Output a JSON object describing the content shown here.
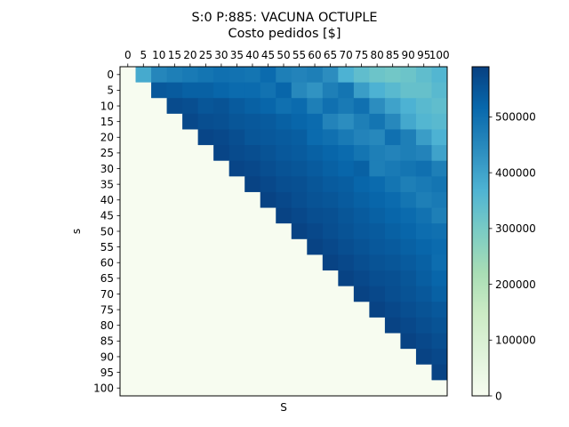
{
  "chart_data": {
    "type": "heatmap",
    "title": "S:0 P:885: VACUNA OCTUPLE",
    "subtitle": "Costo pedidos [$]",
    "xlabel": "S",
    "ylabel": "s",
    "x_ticks": [
      "0",
      "5",
      "10",
      "15",
      "20",
      "25",
      "30",
      "35",
      "40",
      "45",
      "50",
      "55",
      "60",
      "65",
      "70",
      "75",
      "80",
      "85",
      "90",
      "95",
      "100"
    ],
    "y_ticks": [
      "0",
      "5",
      "10",
      "15",
      "20",
      "25",
      "30",
      "35",
      "40",
      "45",
      "50",
      "55",
      "60",
      "65",
      "70",
      "75",
      "80",
      "85",
      "90",
      "95",
      "100"
    ],
    "colormap": "GnBu",
    "vmin": 0,
    "vmax": 590000,
    "colorbar_ticks": [
      "0",
      "100000",
      "200000",
      "300000",
      "400000",
      "500000"
    ],
    "colorbar_tick_values": [
      0,
      100000,
      200000,
      300000,
      400000,
      500000
    ],
    "values": [
      [
        0,
        385000,
        455000,
        470000,
        480000,
        490000,
        500000,
        495000,
        490000,
        510000,
        470000,
        460000,
        470000,
        440000,
        370000,
        340000,
        320000,
        310000,
        320000,
        340000,
        360000
      ],
      [
        0,
        0,
        545000,
        540000,
        530000,
        530000,
        520000,
        510000,
        510000,
        495000,
        520000,
        450000,
        430000,
        470000,
        490000,
        410000,
        370000,
        350000,
        330000,
        330000,
        350000
      ],
      [
        0,
        0,
        0,
        570000,
        565000,
        550000,
        555000,
        540000,
        530000,
        520000,
        500000,
        510000,
        470000,
        500000,
        480000,
        500000,
        440000,
        400000,
        370000,
        350000,
        340000
      ],
      [
        0,
        0,
        0,
        0,
        575000,
        565000,
        560000,
        550000,
        545000,
        540000,
        530000,
        520000,
        510000,
        460000,
        440000,
        470000,
        490000,
        450000,
        390000,
        360000,
        350000
      ],
      [
        0,
        0,
        0,
        0,
        0,
        580000,
        575000,
        565000,
        550000,
        545000,
        540000,
        535000,
        510000,
        500000,
        480000,
        460000,
        450000,
        500000,
        470000,
        410000,
        370000
      ],
      [
        0,
        0,
        0,
        0,
        0,
        0,
        580000,
        570000,
        565000,
        555000,
        545000,
        540000,
        530000,
        520000,
        510000,
        490000,
        470000,
        460000,
        470000,
        460000,
        400000
      ],
      [
        0,
        0,
        0,
        0,
        0,
        0,
        0,
        580000,
        575000,
        565000,
        555000,
        550000,
        540000,
        530000,
        520000,
        530000,
        470000,
        480000,
        490000,
        500000,
        470000
      ],
      [
        0,
        0,
        0,
        0,
        0,
        0,
        0,
        0,
        585000,
        575000,
        565000,
        560000,
        550000,
        540000,
        535000,
        520000,
        510000,
        490000,
        470000,
        480000,
        490000
      ],
      [
        0,
        0,
        0,
        0,
        0,
        0,
        0,
        0,
        0,
        585000,
        575000,
        565000,
        555000,
        550000,
        540000,
        530000,
        520000,
        510000,
        490000,
        470000,
        480000
      ],
      [
        0,
        0,
        0,
        0,
        0,
        0,
        0,
        0,
        0,
        0,
        585000,
        575000,
        565000,
        560000,
        550000,
        540000,
        530000,
        520000,
        510000,
        495000,
        470000
      ],
      [
        0,
        0,
        0,
        0,
        0,
        0,
        0,
        0,
        0,
        0,
        0,
        585000,
        575000,
        565000,
        555000,
        545000,
        540000,
        530000,
        520000,
        505000,
        500000
      ],
      [
        0,
        0,
        0,
        0,
        0,
        0,
        0,
        0,
        0,
        0,
        0,
        0,
        585000,
        575000,
        565000,
        555000,
        545000,
        540000,
        530000,
        520000,
        510000
      ],
      [
        0,
        0,
        0,
        0,
        0,
        0,
        0,
        0,
        0,
        0,
        0,
        0,
        0,
        585000,
        575000,
        565000,
        555000,
        550000,
        540000,
        530000,
        505000
      ],
      [
        0,
        0,
        0,
        0,
        0,
        0,
        0,
        0,
        0,
        0,
        0,
        0,
        0,
        0,
        585000,
        575000,
        565000,
        560000,
        550000,
        535000,
        520000
      ],
      [
        0,
        0,
        0,
        0,
        0,
        0,
        0,
        0,
        0,
        0,
        0,
        0,
        0,
        0,
        0,
        585000,
        575000,
        565000,
        555000,
        545000,
        530000
      ],
      [
        0,
        0,
        0,
        0,
        0,
        0,
        0,
        0,
        0,
        0,
        0,
        0,
        0,
        0,
        0,
        0,
        585000,
        575000,
        565000,
        555000,
        545000
      ],
      [
        0,
        0,
        0,
        0,
        0,
        0,
        0,
        0,
        0,
        0,
        0,
        0,
        0,
        0,
        0,
        0,
        0,
        585000,
        575000,
        565000,
        555000
      ],
      [
        0,
        0,
        0,
        0,
        0,
        0,
        0,
        0,
        0,
        0,
        0,
        0,
        0,
        0,
        0,
        0,
        0,
        0,
        585000,
        575000,
        565000
      ],
      [
        0,
        0,
        0,
        0,
        0,
        0,
        0,
        0,
        0,
        0,
        0,
        0,
        0,
        0,
        0,
        0,
        0,
        0,
        0,
        585000,
        575000
      ],
      [
        0,
        0,
        0,
        0,
        0,
        0,
        0,
        0,
        0,
        0,
        0,
        0,
        0,
        0,
        0,
        0,
        0,
        0,
        0,
        0,
        585000
      ],
      [
        0,
        0,
        0,
        0,
        0,
        0,
        0,
        0,
        0,
        0,
        0,
        0,
        0,
        0,
        0,
        0,
        0,
        0,
        0,
        0,
        0
      ]
    ]
  }
}
